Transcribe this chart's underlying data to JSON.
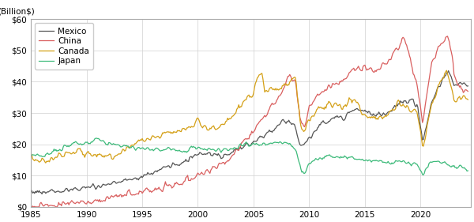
{
  "ylabel": "(Billion$)",
  "ylim": [
    0,
    60
  ],
  "yticks": [
    0,
    10,
    20,
    30,
    40,
    50,
    60
  ],
  "ytick_labels": [
    "$0",
    "$10",
    "$20",
    "$30",
    "$40",
    "$50",
    "$60"
  ],
  "xlim": [
    1985,
    2024.5
  ],
  "xticks": [
    1985,
    1990,
    1995,
    2000,
    2005,
    2010,
    2015,
    2020
  ],
  "series": {
    "Mexico": {
      "color": "#555555",
      "linewidth": 0.9
    },
    "China": {
      "color": "#d95f5f",
      "linewidth": 0.9
    },
    "Canada": {
      "color": "#d4a017",
      "linewidth": 0.9
    },
    "Japan": {
      "color": "#3dba7a",
      "linewidth": 0.9
    }
  },
  "legend_order": [
    "Mexico",
    "China",
    "Canada",
    "Japan"
  ],
  "background_color": "#ffffff",
  "figure_size": [
    6.0,
    2.81
  ],
  "dpi": 100
}
